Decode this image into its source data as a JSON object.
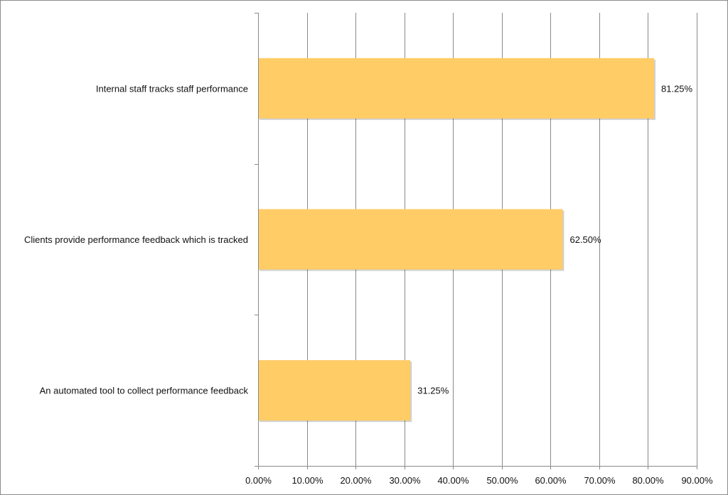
{
  "chart_data": {
    "type": "bar",
    "orientation": "horizontal",
    "categories": [
      "Internal staff tracks staff performance",
      "Clients provide performance feedback which is tracked",
      "An automated tool to collect performance feedback"
    ],
    "values": [
      81.25,
      62.5,
      31.25
    ],
    "data_labels": [
      "81.25%",
      "62.50%",
      "31.25%"
    ],
    "xlim": [
      0,
      90
    ],
    "x_ticks": [
      0,
      10,
      20,
      30,
      40,
      50,
      60,
      70,
      80,
      90
    ],
    "x_tick_labels": [
      "0.00%",
      "10.00%",
      "20.00%",
      "30.00%",
      "40.00%",
      "50.00%",
      "60.00%",
      "70.00%",
      "80.00%",
      "90.00%"
    ],
    "grid": true,
    "legend": "none",
    "bar_color": "#ffcc66"
  }
}
